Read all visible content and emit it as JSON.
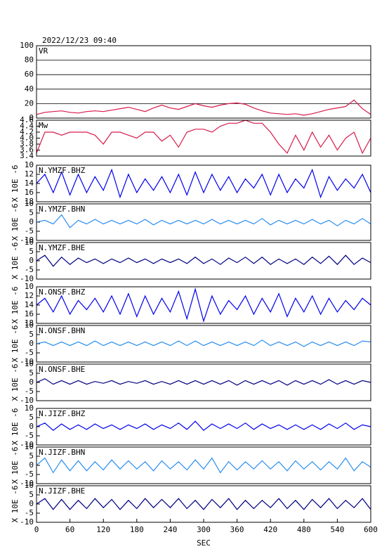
{
  "title": "2022/12/23 09:40",
  "chart_data": [
    {
      "type": "line",
      "name": "VR",
      "color": "#d81b4a",
      "grid": true,
      "xlim": [
        0,
        600
      ],
      "ylim": [
        0,
        100
      ],
      "yticks": [
        0,
        20,
        40,
        60,
        80,
        100
      ],
      "x": [
        0,
        15,
        30,
        45,
        60,
        75,
        90,
        105,
        120,
        135,
        150,
        165,
        180,
        195,
        210,
        225,
        240,
        255,
        270,
        285,
        300,
        315,
        330,
        345,
        360,
        375,
        390,
        405,
        420,
        435,
        450,
        465,
        480,
        495,
        510,
        525,
        540,
        555,
        570,
        585,
        600
      ],
      "values": [
        5,
        8,
        9,
        10,
        8,
        7,
        9,
        10,
        9,
        11,
        13,
        15,
        12,
        9,
        14,
        18,
        14,
        12,
        16,
        20,
        17,
        15,
        18,
        20,
        21,
        19,
        14,
        10,
        7,
        6,
        5,
        6,
        4,
        6,
        9,
        12,
        14,
        16,
        25,
        13,
        5
      ]
    },
    {
      "type": "line",
      "name": "Mw",
      "color": "#d81b4a",
      "grid": false,
      "xlim": [
        0,
        600
      ],
      "ylim": [
        3.4,
        4.6
      ],
      "yticks": [
        3.4,
        3.6,
        3.8,
        {
          "value": 4.0,
          "label": "4.0"
        },
        4.2,
        4.4,
        4.6
      ],
      "x": [
        0,
        15,
        30,
        45,
        60,
        75,
        90,
        105,
        120,
        135,
        150,
        165,
        180,
        195,
        210,
        225,
        240,
        255,
        270,
        285,
        300,
        315,
        330,
        345,
        360,
        375,
        390,
        405,
        420,
        435,
        450,
        465,
        480,
        495,
        510,
        525,
        540,
        555,
        570,
        585,
        600
      ],
      "values": [
        3.5,
        4.2,
        4.2,
        4.1,
        4.2,
        4.2,
        4.2,
        4.1,
        3.8,
        4.2,
        4.2,
        4.1,
        4.0,
        4.2,
        4.2,
        3.9,
        4.1,
        3.7,
        4.2,
        4.3,
        4.3,
        4.2,
        4.4,
        4.5,
        4.5,
        4.6,
        4.5,
        4.5,
        4.2,
        3.8,
        3.5,
        4.1,
        3.6,
        4.2,
        3.7,
        4.1,
        3.6,
        4.0,
        4.2,
        3.5,
        4.0
      ]
    },
    {
      "type": "line",
      "name": "N.YMZF.BHZ",
      "y_label": "X 10E -6",
      "color": "#0000ee",
      "xlim": [
        0,
        600
      ],
      "ylim": [
        18,
        10
      ],
      "yticks": [
        10,
        12,
        14,
        16,
        18
      ],
      "x": [
        0,
        15,
        30,
        45,
        60,
        75,
        90,
        105,
        120,
        135,
        150,
        165,
        180,
        195,
        210,
        225,
        240,
        255,
        270,
        285,
        300,
        315,
        330,
        345,
        360,
        375,
        390,
        405,
        420,
        435,
        450,
        465,
        480,
        495,
        510,
        525,
        540,
        555,
        570,
        585,
        600
      ],
      "values": [
        14,
        12,
        16,
        11.5,
        16.5,
        12,
        16,
        12.5,
        15.5,
        11,
        17,
        12,
        16,
        13,
        15.5,
        12.5,
        16,
        12,
        16.5,
        11.5,
        16,
        12,
        15.5,
        12.5,
        16,
        13,
        15,
        12,
        16.5,
        12,
        16,
        13,
        15,
        11,
        17,
        12.5,
        15.5,
        13,
        15,
        12,
        16
      ]
    },
    {
      "type": "line",
      "name": "N.YMZF.BHN",
      "y_label": "X 10E -6",
      "color": "#2a8ef0",
      "xlim": [
        0,
        600
      ],
      "ylim": [
        -10,
        10
      ],
      "yticks": [
        -10,
        -5,
        0,
        5,
        10
      ],
      "x": [
        0,
        15,
        30,
        45,
        60,
        75,
        90,
        105,
        120,
        135,
        150,
        165,
        180,
        195,
        210,
        225,
        240,
        255,
        270,
        285,
        300,
        315,
        330,
        345,
        360,
        375,
        390,
        405,
        420,
        435,
        450,
        465,
        480,
        495,
        510,
        525,
        540,
        555,
        570,
        585,
        600
      ],
      "values": [
        0,
        1,
        -1,
        4,
        -3,
        1,
        -1,
        1.5,
        -1,
        1,
        -1,
        1,
        -1,
        1.5,
        -1.5,
        1,
        -1,
        1,
        -1,
        1,
        -1,
        1.5,
        -1,
        1,
        -1,
        1,
        -1,
        2,
        -1.5,
        1,
        -1,
        1,
        -1,
        1.5,
        -1,
        1,
        -2,
        1,
        -1,
        2,
        -1
      ]
    },
    {
      "type": "line",
      "name": "N.YMZF.BHE",
      "y_label": "X 10E -6",
      "color": "#000080",
      "xlim": [
        0,
        600
      ],
      "ylim": [
        -10,
        10
      ],
      "yticks": [
        -10,
        -5,
        0,
        5,
        10
      ],
      "x": [
        0,
        15,
        30,
        45,
        60,
        75,
        90,
        105,
        120,
        135,
        150,
        165,
        180,
        195,
        210,
        225,
        240,
        255,
        270,
        285,
        300,
        315,
        330,
        345,
        360,
        375,
        390,
        405,
        420,
        435,
        450,
        465,
        480,
        495,
        510,
        525,
        540,
        555,
        570,
        585,
        600
      ],
      "values": [
        0,
        3,
        -3,
        2,
        -2,
        1.5,
        -1,
        1,
        -1.5,
        1,
        -1,
        1.5,
        -1,
        1,
        -1.5,
        1,
        -1,
        1,
        -1.5,
        2,
        -1.5,
        1,
        -2,
        1.5,
        -1,
        2,
        -1.5,
        2,
        -2,
        1,
        -1.5,
        1,
        -2,
        2,
        -1.5,
        2.5,
        -2,
        3,
        -2,
        1.5,
        -1
      ]
    },
    {
      "type": "line",
      "name": "N.ONSF.BHZ",
      "y_label": "X 10E -6",
      "color": "#0000ee",
      "xlim": [
        0,
        600
      ],
      "ylim": [
        18,
        10
      ],
      "yticks": [
        10,
        12,
        14,
        16,
        18
      ],
      "x": [
        0,
        15,
        30,
        45,
        60,
        75,
        90,
        105,
        120,
        135,
        150,
        165,
        180,
        195,
        210,
        225,
        240,
        255,
        270,
        285,
        300,
        315,
        330,
        345,
        360,
        375,
        390,
        405,
        420,
        435,
        450,
        465,
        480,
        495,
        510,
        525,
        540,
        555,
        570,
        585,
        600
      ],
      "values": [
        14,
        12.5,
        15.5,
        12,
        16,
        13,
        15,
        12.5,
        15.5,
        12,
        16,
        11.5,
        16.5,
        12,
        16,
        12.5,
        15.5,
        11,
        17,
        10.5,
        17.5,
        12,
        16,
        13,
        15,
        12,
        16,
        12.5,
        15.5,
        11.5,
        16.5,
        12.5,
        15.5,
        12,
        16,
        12.5,
        15.5,
        13,
        15,
        12.5,
        14
      ]
    },
    {
      "type": "line",
      "name": "N.ONSF.BHN",
      "y_label": "X 10E -6",
      "color": "#2a8ef0",
      "xlim": [
        0,
        600
      ],
      "ylim": [
        -10,
        10
      ],
      "yticks": [
        -10,
        -5,
        0,
        5,
        10
      ],
      "x": [
        0,
        15,
        30,
        45,
        60,
        75,
        90,
        105,
        120,
        135,
        150,
        165,
        180,
        195,
        210,
        225,
        240,
        255,
        270,
        285,
        300,
        315,
        330,
        345,
        360,
        375,
        390,
        405,
        420,
        435,
        450,
        465,
        480,
        495,
        510,
        525,
        540,
        555,
        570,
        585,
        600
      ],
      "values": [
        0,
        1,
        -1,
        1,
        -1,
        1,
        -1,
        1.5,
        -1,
        1,
        -1,
        1,
        -1,
        1,
        -1,
        1,
        -1,
        1.5,
        -1,
        1.5,
        -1,
        1,
        -1,
        1,
        -1,
        1,
        -1,
        2,
        -1,
        1,
        -1,
        1,
        -1.5,
        1,
        -1,
        1,
        -1,
        1,
        -1,
        1.5,
        1
      ]
    },
    {
      "type": "line",
      "name": "N.ONSF.BHE",
      "y_label": "X 10E -6",
      "color": "#000080",
      "xlim": [
        0,
        600
      ],
      "ylim": [
        -10,
        10
      ],
      "yticks": [
        -10,
        -5,
        0,
        5,
        10
      ],
      "x": [
        0,
        15,
        30,
        45,
        60,
        75,
        90,
        105,
        120,
        135,
        150,
        165,
        180,
        195,
        210,
        225,
        240,
        255,
        270,
        285,
        300,
        315,
        330,
        345,
        360,
        375,
        390,
        405,
        420,
        435,
        450,
        465,
        480,
        495,
        510,
        525,
        540,
        555,
        570,
        585,
        600
      ],
      "values": [
        0,
        2,
        -1,
        1,
        -1,
        1,
        -1,
        0.5,
        -0.5,
        1,
        -1,
        0.5,
        -0.5,
        1,
        -1,
        0.5,
        -1,
        1,
        -1,
        1,
        -1,
        1,
        -1,
        1,
        -1.5,
        1,
        -1,
        1,
        -1,
        1,
        -1.5,
        1,
        -1,
        1,
        -1,
        1.5,
        -1,
        1,
        -1,
        1,
        0
      ]
    },
    {
      "type": "line",
      "name": "N.JIZF.BHZ",
      "y_label": "X 10E -6",
      "color": "#0000ee",
      "xlim": [
        0,
        600
      ],
      "ylim": [
        -10,
        10
      ],
      "yticks": [
        -10,
        -5,
        0,
        5,
        10
      ],
      "x": [
        0,
        15,
        30,
        45,
        60,
        75,
        90,
        105,
        120,
        135,
        150,
        165,
        180,
        195,
        210,
        225,
        240,
        255,
        270,
        285,
        300,
        315,
        330,
        345,
        360,
        375,
        390,
        405,
        420,
        435,
        450,
        465,
        480,
        495,
        510,
        525,
        540,
        555,
        570,
        585,
        600
      ],
      "values": [
        0,
        2,
        -2,
        1.5,
        -1.5,
        1,
        -1.5,
        1.5,
        -1,
        1,
        -1.5,
        1,
        -1,
        1.5,
        -1.5,
        1,
        -1,
        2,
        -1.5,
        3,
        -2,
        1.5,
        -1,
        1.5,
        -1,
        2,
        -1.5,
        1.5,
        -1,
        1,
        -1.5,
        1,
        -1.5,
        1,
        -1.5,
        1.5,
        -1,
        2,
        -1.5,
        1,
        0
      ]
    },
    {
      "type": "line",
      "name": "N.JIZF.BHN",
      "y_label": "X 10E -6",
      "color": "#2a8ef0",
      "xlim": [
        0,
        600
      ],
      "ylim": [
        -10,
        10
      ],
      "yticks": [
        -10,
        -5,
        0,
        5,
        10
      ],
      "x": [
        0,
        15,
        30,
        45,
        60,
        75,
        90,
        105,
        120,
        135,
        150,
        165,
        180,
        195,
        210,
        225,
        240,
        255,
        270,
        285,
        300,
        315,
        330,
        345,
        360,
        375,
        390,
        405,
        420,
        435,
        450,
        465,
        480,
        495,
        510,
        525,
        540,
        555,
        570,
        585,
        600
      ],
      "values": [
        0,
        4,
        -4,
        3,
        -3,
        2.5,
        -3,
        2,
        -2.5,
        3,
        -2,
        2.5,
        -2,
        2,
        -3,
        2.5,
        -2,
        2,
        -2.5,
        3,
        -2,
        4,
        -4,
        2,
        -2.5,
        2,
        -2,
        2.5,
        -2,
        2,
        -3,
        2.5,
        -2,
        2,
        -2.5,
        2,
        -2,
        4,
        -3,
        2,
        -1
      ]
    },
    {
      "type": "line",
      "name": "N.JIZF.BHE",
      "y_label": "X 10E -6",
      "color": "#000080",
      "xlim": [
        0,
        600
      ],
      "ylim": [
        -10,
        10
      ],
      "yticks": [
        -10,
        -5,
        0,
        5,
        10
      ],
      "xticks": [
        0,
        60,
        120,
        180,
        240,
        300,
        360,
        420,
        480,
        540,
        600
      ],
      "x_label": "SEC",
      "x": [
        0,
        15,
        30,
        45,
        60,
        75,
        90,
        105,
        120,
        135,
        150,
        165,
        180,
        195,
        210,
        225,
        240,
        255,
        270,
        285,
        300,
        315,
        330,
        345,
        360,
        375,
        390,
        405,
        420,
        435,
        450,
        465,
        480,
        495,
        510,
        525,
        540,
        555,
        570,
        585,
        600
      ],
      "values": [
        0,
        3,
        -3,
        2.5,
        -3,
        2,
        -2.5,
        3,
        -2,
        2.5,
        -3,
        2,
        -2.5,
        3,
        -2,
        2.5,
        -2,
        3,
        -2.5,
        2,
        -3,
        2.5,
        -2,
        3,
        -3,
        2,
        -2.5,
        2,
        -2,
        3,
        -2.5,
        2,
        -3,
        2.5,
        -2,
        3,
        -2.5,
        2,
        -2,
        3,
        -3
      ]
    }
  ]
}
